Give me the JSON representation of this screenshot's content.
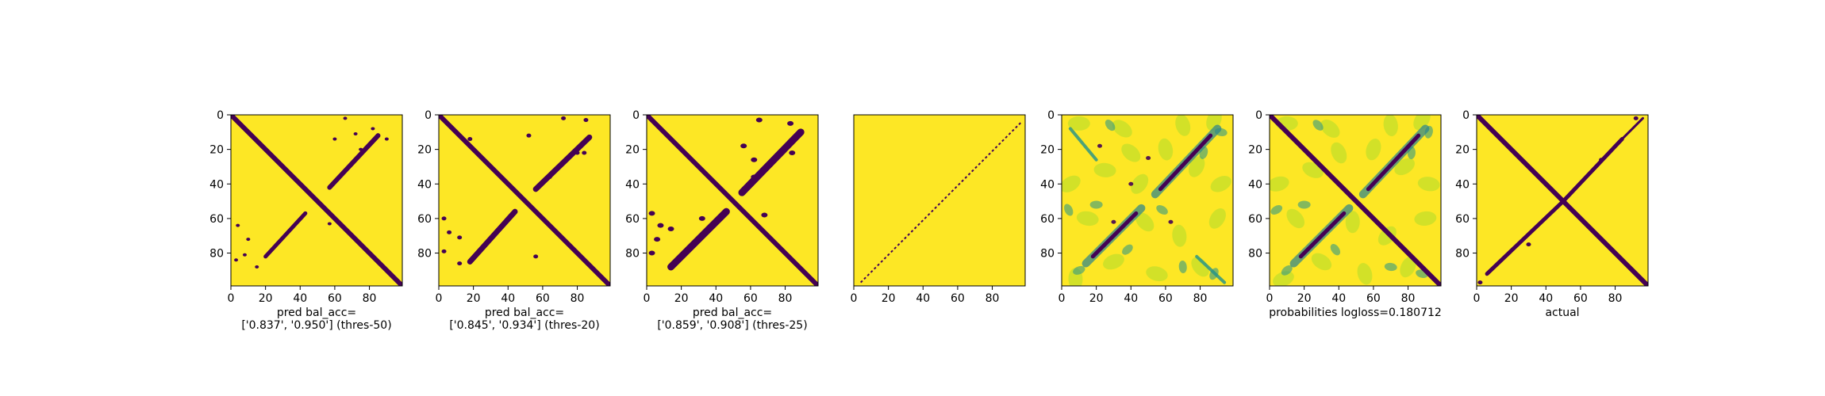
{
  "figure": {
    "colors": {
      "low": "#440154",
      "mid1": "#31688e",
      "mid2": "#35b779",
      "high": "#fde725"
    },
    "panels": [
      {
        "xlabel_lines": [
          "pred bal_acc=",
          "['0.837', '0.950'] (thres-50)"
        ]
      },
      {
        "xlabel_lines": [
          "pred bal_acc=",
          "['0.845', '0.934'] (thres-20)"
        ]
      },
      {
        "xlabel_lines": [
          "pred bal_acc=",
          "['0.859', '0.908'] (thres-25)"
        ]
      },
      {
        "xlabel_lines": []
      },
      {
        "xlabel_lines": []
      },
      {
        "xlabel_lines": [
          "probabilities logloss=0.180712"
        ]
      },
      {
        "xlabel_lines": [
          "actual"
        ]
      }
    ]
  },
  "chart_data": [
    {
      "type": "heatmap",
      "cmap": "viridis",
      "matrix_size": 100,
      "binary": true,
      "xlabel": "pred bal_acc=\n['0.837', '0.950'] (thres-50)",
      "xticks": [
        0,
        20,
        40,
        60,
        80
      ],
      "yticks": [
        0,
        20,
        40,
        60,
        80
      ],
      "xlim": [
        0,
        99
      ],
      "ylim": [
        99,
        0
      ],
      "features": [
        "main diagonal",
        "anti-diagonal off-diagonal bands"
      ]
    },
    {
      "type": "heatmap",
      "cmap": "viridis",
      "matrix_size": 100,
      "binary": true,
      "xlabel": "pred bal_acc=\n['0.845', '0.934'] (thres-20)",
      "xticks": [
        0,
        20,
        40,
        60,
        80
      ],
      "yticks": [
        0,
        20,
        40,
        60,
        80
      ],
      "xlim": [
        0,
        99
      ],
      "ylim": [
        99,
        0
      ]
    },
    {
      "type": "heatmap",
      "cmap": "viridis",
      "matrix_size": 100,
      "binary": true,
      "xlabel": "pred bal_acc=\n['0.859', '0.908'] (thres-25)",
      "xticks": [
        0,
        20,
        40,
        60,
        80
      ],
      "yticks": [
        0,
        20,
        40,
        60,
        80
      ],
      "xlim": [
        0,
        99
      ],
      "ylim": [
        99,
        0
      ]
    },
    {
      "type": "heatmap",
      "cmap": "viridis",
      "matrix_size": 100,
      "binary": true,
      "xlabel": "",
      "xticks": [
        0,
        20,
        40,
        60,
        80
      ],
      "yticks": [],
      "xlim": [
        0,
        99
      ],
      "ylim": [
        99,
        0
      ],
      "features": [
        "thin dotted anti-diagonal line"
      ]
    },
    {
      "type": "heatmap",
      "cmap": "viridis",
      "matrix_size": 100,
      "binary": false,
      "xlabel": "",
      "xticks": [
        0,
        20,
        40,
        60,
        80
      ],
      "yticks": [
        0,
        20,
        40,
        60,
        80
      ],
      "xlim": [
        0,
        99
      ],
      "ylim": [
        99,
        0
      ]
    },
    {
      "type": "heatmap",
      "cmap": "viridis",
      "matrix_size": 100,
      "binary": false,
      "xlabel": "probabilities logloss=0.180712",
      "xticks": [
        0,
        20,
        40,
        60,
        80
      ],
      "yticks": [
        0,
        20,
        40,
        60,
        80
      ],
      "xlim": [
        0,
        99
      ],
      "ylim": [
        99,
        0
      ]
    },
    {
      "type": "heatmap",
      "cmap": "viridis",
      "matrix_size": 100,
      "binary": true,
      "xlabel": "actual",
      "xticks": [
        0,
        20,
        40,
        60,
        80
      ],
      "yticks": [
        0,
        20,
        40,
        60,
        80
      ],
      "xlim": [
        0,
        99
      ],
      "ylim": [
        99,
        0
      ]
    }
  ]
}
